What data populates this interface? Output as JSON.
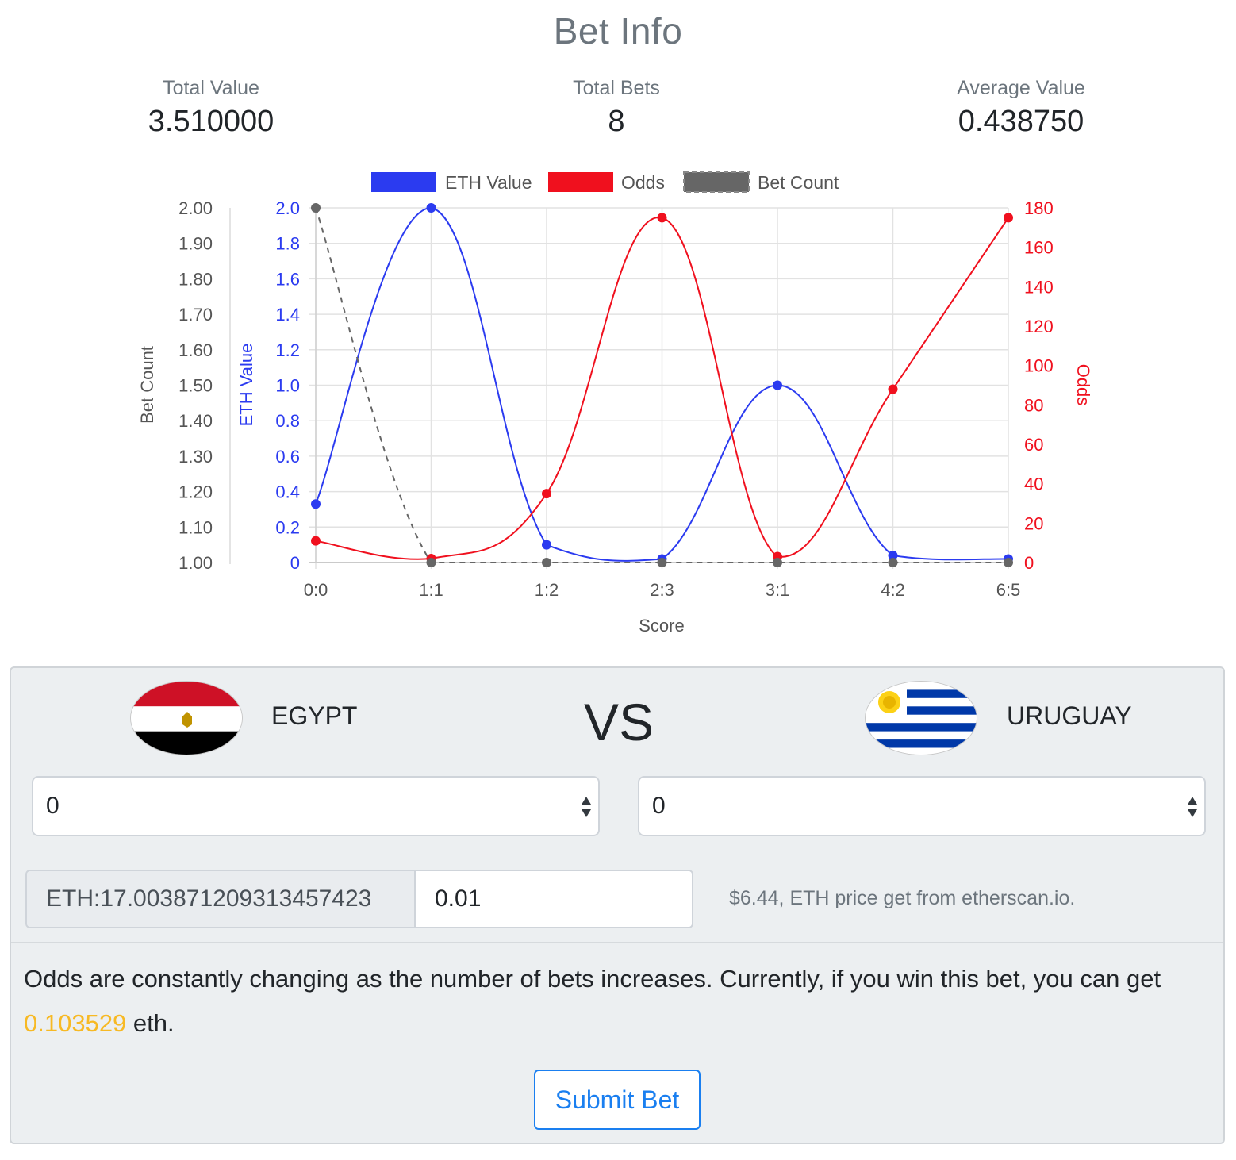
{
  "header": {
    "title": "Bet Info"
  },
  "stats": [
    {
      "label": "Total Value",
      "value": "3.510000"
    },
    {
      "label": "Total Bets",
      "value": "8"
    },
    {
      "label": "Average Value",
      "value": "0.438750"
    }
  ],
  "chart_data": {
    "type": "line",
    "categories": [
      "0:0",
      "1:1",
      "1:2",
      "2:3",
      "3:1",
      "4:2",
      "6:5"
    ],
    "xlabel": "Score",
    "legend_position": "top",
    "grid": true,
    "series": [
      {
        "name": "ETH Value",
        "axis": "ETH Value",
        "color": "#2b3bf0",
        "values": [
          0.33,
          2.0,
          0.1,
          0.02,
          1.0,
          0.04,
          0.02
        ]
      },
      {
        "name": "Odds",
        "axis": "Odds",
        "color": "#f0101e",
        "values": [
          11,
          2,
          35,
          175,
          3,
          88,
          175
        ]
      },
      {
        "name": "Bet Count",
        "axis": "Bet Count",
        "color": "#666666",
        "dashed": true,
        "values": [
          2,
          1,
          1,
          1,
          1,
          1,
          1
        ]
      }
    ],
    "axes": {
      "bet_count": {
        "label": "Bet Count",
        "range": [
          1.0,
          2.0
        ],
        "ticks": [
          "2.00",
          "1.90",
          "1.80",
          "1.70",
          "1.60",
          "1.50",
          "1.40",
          "1.30",
          "1.20",
          "1.10",
          "1.00"
        ]
      },
      "eth_value": {
        "label": "ETH Value",
        "range": [
          0,
          2.0
        ],
        "ticks": [
          "2.0",
          "1.8",
          "1.6",
          "1.4",
          "1.2",
          "1.0",
          "0.8",
          "0.6",
          "0.4",
          "0.2",
          "0"
        ]
      },
      "odds": {
        "label": "Odds",
        "range": [
          0,
          180
        ],
        "ticks": [
          "180",
          "160",
          "140",
          "120",
          "100",
          "80",
          "60",
          "40",
          "20",
          "0"
        ]
      }
    }
  },
  "match": {
    "home": {
      "name": "EGYPT",
      "flag": "egypt-flag-icon"
    },
    "vs": "VS",
    "away": {
      "name": "URUGUAY",
      "flag": "uruguay-flag-icon"
    },
    "home_score_selected": "0",
    "away_score_selected": "0"
  },
  "bet": {
    "balance_label": "ETH:17.003871209313457423",
    "amount": "0.01",
    "price_note": "$6.44, ETH price get from etherscan.io."
  },
  "info": {
    "text_before": "Odds are constantly changing as the number of bets increases. Currently, if you win this bet, you can get ",
    "payout": "0.103529",
    "text_after": " eth."
  },
  "submit_label": "Submit Bet",
  "colors": {
    "eth": "#2b3bf0",
    "odds": "#f0101e",
    "count": "#666666",
    "payout": "#f7b924",
    "primary": "#1a7ff0"
  }
}
